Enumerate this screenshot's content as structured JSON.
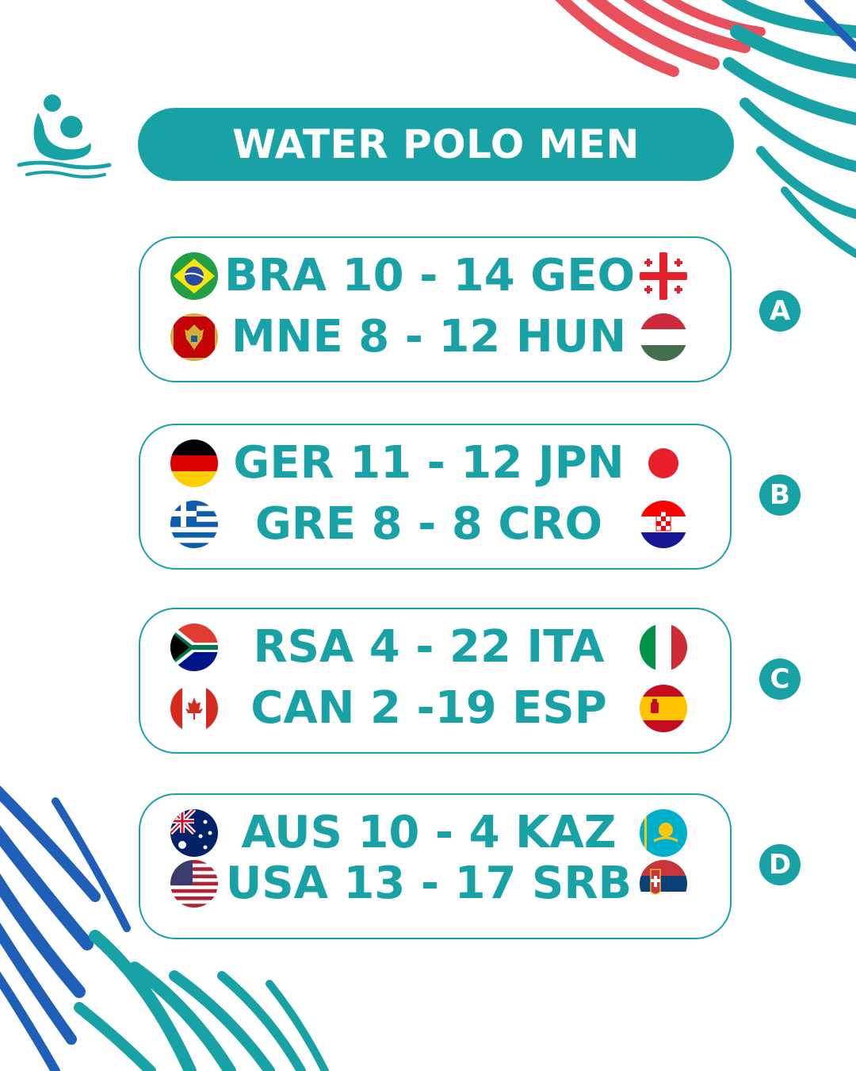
{
  "title": "WATER POLO MEN",
  "colors": {
    "accent": "#19a2a6",
    "deco_red": "#e8505b",
    "deco_blue": "#1f5fb8"
  },
  "sport_icon": "water-polo-player-icon",
  "groups": [
    {
      "letter": "A",
      "matches": [
        {
          "text": "BRA 10 - 14 GEO",
          "home_flag": "brazil-flag-icon",
          "away_flag": "georgia-flag-icon"
        },
        {
          "text": "MNE 8 - 12 HUN",
          "home_flag": "montenegro-flag-icon",
          "away_flag": "hungary-flag-icon"
        }
      ]
    },
    {
      "letter": "B",
      "matches": [
        {
          "text": "GER 11 - 12 JPN",
          "home_flag": "germany-flag-icon",
          "away_flag": "japan-flag-icon"
        },
        {
          "text": "GRE 8 - 8 CRO",
          "home_flag": "greece-flag-icon",
          "away_flag": "croatia-flag-icon"
        }
      ]
    },
    {
      "letter": "C",
      "matches": [
        {
          "text": "RSA 4 - 22 ITA",
          "home_flag": "south-africa-flag-icon",
          "away_flag": "italy-flag-icon"
        },
        {
          "text": "CAN 2 -19 ESP",
          "home_flag": "canada-flag-icon",
          "away_flag": "spain-flag-icon"
        }
      ]
    },
    {
      "letter": "D",
      "matches": [
        {
          "text": "AUS 10 - 4 KAZ",
          "home_flag": "australia-flag-icon",
          "away_flag": "kazakhstan-flag-icon"
        },
        {
          "text": "USA 13 - 17 SRB",
          "home_flag": "usa-flag-icon",
          "away_flag": "serbia-flag-icon"
        }
      ]
    }
  ]
}
